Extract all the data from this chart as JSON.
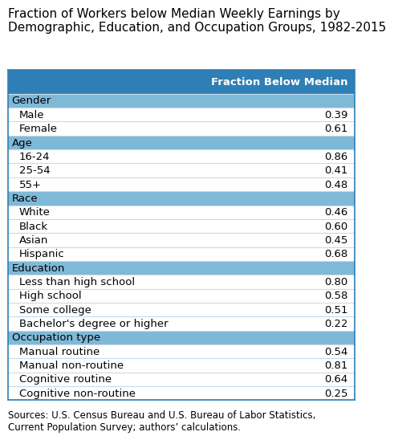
{
  "title": "Fraction of Workers below Median Weekly Earnings by\nDemographic, Education, and Occupation Groups, 1982-2015",
  "header": "Fraction Below Median",
  "source": "Sources: U.S. Census Bureau and U.S. Bureau of Labor Statistics,\nCurrent Population Survey; authors’ calculations.",
  "rows": [
    {
      "type": "group",
      "label": "Gender"
    },
    {
      "type": "data",
      "label": "Male",
      "value": "0.39"
    },
    {
      "type": "data",
      "label": "Female",
      "value": "0.61"
    },
    {
      "type": "group",
      "label": "Age"
    },
    {
      "type": "data",
      "label": "16-24",
      "value": "0.86"
    },
    {
      "type": "data",
      "label": "25-54",
      "value": "0.41"
    },
    {
      "type": "data",
      "label": "55+",
      "value": "0.48"
    },
    {
      "type": "group",
      "label": "Race"
    },
    {
      "type": "data",
      "label": "White",
      "value": "0.46"
    },
    {
      "type": "data",
      "label": "Black",
      "value": "0.60"
    },
    {
      "type": "data",
      "label": "Asian",
      "value": "0.45"
    },
    {
      "type": "data",
      "label": "Hispanic",
      "value": "0.68"
    },
    {
      "type": "group",
      "label": "Education"
    },
    {
      "type": "data",
      "label": "Less than high school",
      "value": "0.80"
    },
    {
      "type": "data",
      "label": "High school",
      "value": "0.58"
    },
    {
      "type": "data",
      "label": "Some college",
      "value": "0.51"
    },
    {
      "type": "data",
      "label": "Bachelor's degree or higher",
      "value": "0.22"
    },
    {
      "type": "group",
      "label": "Occupation type"
    },
    {
      "type": "data",
      "label": "Manual routine",
      "value": "0.54"
    },
    {
      "type": "data",
      "label": "Manual non-routine",
      "value": "0.81"
    },
    {
      "type": "data",
      "label": "Cognitive routine",
      "value": "0.64"
    },
    {
      "type": "data",
      "label": "Cognitive non-routine",
      "value": "0.25"
    }
  ],
  "header_bg": "#2e7fb5",
  "header_fg": "#ffffff",
  "group_bg": "#7fb9d8",
  "group_fg": "#000000",
  "data_bg": "#ffffff",
  "data_fg": "#000000",
  "table_border": "#2e7fb5",
  "title_fontsize": 11.0,
  "header_fontsize": 9.5,
  "row_fontsize": 9.5,
  "source_fontsize": 8.5
}
